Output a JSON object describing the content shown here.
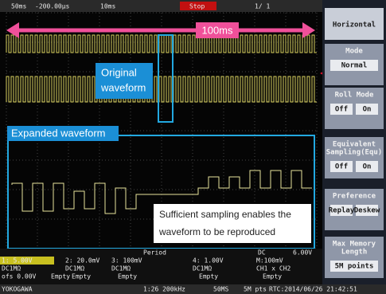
{
  "top_bar": {
    "timebase": "50ms",
    "delay": "-200.00µs",
    "zoom": "10ms",
    "state": "Stop",
    "count": "1/ 1"
  },
  "annotations": {
    "span": "100ms",
    "original": [
      "Original",
      "waveform"
    ],
    "expanded": "Expanded waveform",
    "note": [
      "Sufficient sampling enables the",
      "waveform to be reproduced"
    ]
  },
  "menu": {
    "title": "Horizontal",
    "items": [
      {
        "label": [
          "Mode"
        ],
        "options": [
          "Normal"
        ]
      },
      {
        "label": [
          "Roll Mode"
        ],
        "options": [
          "Off",
          "On"
        ]
      },
      {
        "label": [
          "Equivalent",
          "Sampling(Equ)"
        ],
        "options": [
          "Off",
          "On"
        ]
      },
      {
        "label": [
          "Preference"
        ],
        "options": [
          "Replay",
          "Deskew"
        ]
      },
      {
        "label": [
          "Max Memory",
          "Length"
        ],
        "options": [
          "5M points"
        ]
      }
    ]
  },
  "info": {
    "row1": [
      "Period",
      "DC",
      "6.00V"
    ],
    "row2": [
      "1: 5.00V",
      "2: 20.0mV",
      "3: 100mV",
      "4: 1.00V",
      "M:100mV"
    ],
    "row3": [
      "DC1MΩ",
      "DC1MΩ",
      "DC1MΩ",
      "DC1MΩ",
      "CH1 x CH2"
    ],
    "row4": [
      "ofs  0.00V",
      "Empty",
      "Empty",
      "Empty",
      "Empty",
      "Empty"
    ],
    "status": [
      "YOKOGAWA",
      "1:26 200kHz",
      "50MS",
      "5M pts",
      "RTC:2014/06/26 21:42:51"
    ]
  }
}
